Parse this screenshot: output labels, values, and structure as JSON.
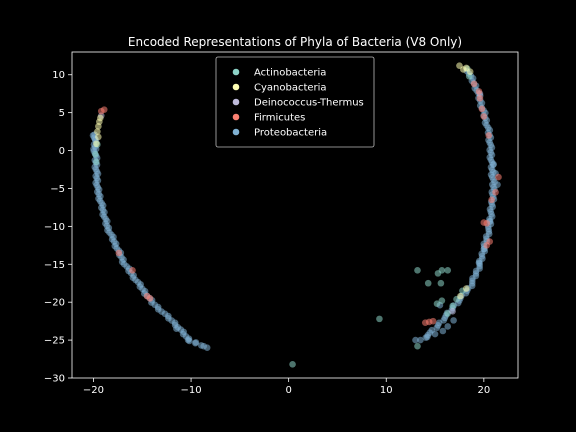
{
  "chart_data": {
    "type": "scatter",
    "title": "Encoded Representations of Phyla of Bacteria (V8 Only)",
    "xlabel": "",
    "ylabel": "",
    "xlim": [
      -22.2,
      23.5
    ],
    "ylim": [
      -30,
      13
    ],
    "xticks": [
      -20,
      -10,
      0,
      10,
      20
    ],
    "yticks": [
      10,
      5,
      0,
      -5,
      -10,
      -15,
      -20,
      -25,
      -30
    ],
    "grid": false,
    "legend_position": "top-center",
    "series": [
      {
        "name": "Actinobacteria",
        "color": "#8dd3c7",
        "points": [
          [
            -19.8,
            -0.5
          ],
          [
            -19.7,
            -1.5
          ],
          [
            -19.6,
            0.8
          ],
          [
            14.3,
            -17.5
          ],
          [
            15.3,
            -16.2
          ],
          [
            15.7,
            -15.8
          ],
          [
            15.6,
            -17.5
          ],
          [
            15.2,
            -20.2
          ],
          [
            15.7,
            -19.8
          ],
          [
            16.3,
            -15.8
          ],
          [
            16.8,
            -20.5
          ],
          [
            17.2,
            -19.6
          ],
          [
            17.8,
            -18.5
          ],
          [
            13.2,
            -15.8
          ],
          [
            13.2,
            -25.8
          ],
          [
            16.3,
            -21.5
          ],
          [
            9.3,
            -22.2
          ],
          [
            0.4,
            -28.2
          ],
          [
            18.3,
            10.8
          ],
          [
            18.5,
            9.8
          ]
        ]
      },
      {
        "name": "Cyanobacteria",
        "color": "#ffffb3",
        "points": [
          [
            -19.6,
            2.5
          ],
          [
            -19.5,
            3.2
          ],
          [
            -19.4,
            3.8
          ],
          [
            -19.3,
            4.3
          ],
          [
            -19.5,
            1.8
          ],
          [
            -19.7,
            0.9
          ],
          [
            17.5,
            11.2
          ],
          [
            17.9,
            10.7
          ],
          [
            18.2,
            10.9
          ],
          [
            18.6,
            10.4
          ],
          [
            17.6,
            -19.2
          ],
          [
            18.2,
            -18.2
          ]
        ]
      },
      {
        "name": "Deinococcus-Thermus",
        "color": "#bebada",
        "points": [
          [
            19.6,
            7.5
          ],
          [
            16.8,
            -21.2
          ],
          [
            -19.2,
            4.6
          ]
        ]
      },
      {
        "name": "Firmicutes",
        "color": "#fb8072",
        "points": [
          [
            -19.2,
            5.2
          ],
          [
            -18.9,
            5.4
          ],
          [
            19.5,
            7.8
          ],
          [
            19.6,
            6.9
          ],
          [
            19.8,
            5.5
          ],
          [
            20.0,
            4.5
          ],
          [
            20.5,
            2.0
          ],
          [
            21.5,
            -3.5
          ],
          [
            21.2,
            -5.5
          ],
          [
            20.8,
            -6.5
          ],
          [
            20.0,
            -9.5
          ],
          [
            20.3,
            -9.6
          ],
          [
            20.6,
            -12.0
          ],
          [
            20.3,
            -12.5
          ],
          [
            14.0,
            -22.7
          ],
          [
            14.4,
            -22.6
          ],
          [
            14.8,
            -22.5
          ],
          [
            -14.5,
            -19.2
          ],
          [
            -14.2,
            -19.5
          ],
          [
            -16.0,
            -15.8
          ],
          [
            -17.4,
            -13.5
          ],
          [
            19.0,
            8.8
          ]
        ]
      },
      {
        "name": "Proteobacteria",
        "color": "#80b1d3",
        "curves": [
          {
            "y0": 2.0,
            "y1": -26.0,
            "n": 95,
            "xfn": "left"
          },
          {
            "y0": 10.5,
            "y1": -25.0,
            "n": 110,
            "xfn": "right"
          }
        ],
        "points": [
          [
            -10.3,
            -25.0
          ],
          [
            -9.5,
            -25.3
          ],
          [
            -8.7,
            -25.8
          ],
          [
            -11.5,
            -23.5
          ],
          [
            13.0,
            -25.0
          ],
          [
            14.2,
            -24.6
          ],
          [
            15.0,
            -24.2
          ],
          [
            15.8,
            -23.8
          ],
          [
            16.3,
            -23.2
          ],
          [
            16.9,
            -22.4
          ],
          [
            -19.9,
            2.1
          ],
          [
            -19.8,
            1.5
          ],
          [
            -20.0,
            0.2
          ],
          [
            21.0,
            -1.8
          ],
          [
            21.2,
            -3.0
          ],
          [
            21.4,
            -4.5
          ],
          [
            20.6,
            -9.3
          ],
          [
            20.0,
            -13.0
          ],
          [
            19.5,
            -14.8
          ],
          [
            15.5,
            -20.4
          ]
        ]
      }
    ]
  }
}
